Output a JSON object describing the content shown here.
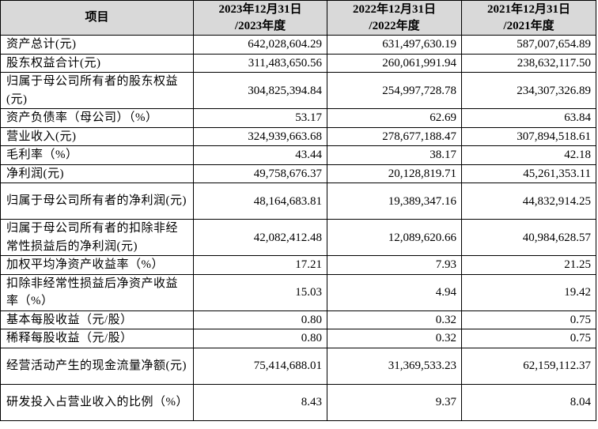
{
  "header": {
    "item_label": "项目",
    "columns": [
      {
        "date": "2023年12月31日",
        "period": "/2023年度"
      },
      {
        "date": "2022年12月31日",
        "period": "/2022年度"
      },
      {
        "date": "2021年12月31日",
        "period": "/2021年度"
      }
    ]
  },
  "rows": [
    {
      "label": "资产总计(元)",
      "values": [
        "642,028,604.29",
        "631,497,630.19",
        "587,007,654.89"
      ]
    },
    {
      "label": "股东权益合计(元)",
      "values": [
        "311,483,650.56",
        "260,061,991.94",
        "238,632,117.50"
      ]
    },
    {
      "label": "归属于母公司所有者的股东权益(元)",
      "values": [
        "304,825,394.84",
        "254,997,728.78",
        "234,307,326.89"
      ]
    },
    {
      "label": "资产负债率（母公司）（%）",
      "values": [
        "53.17",
        "62.69",
        "63.84"
      ]
    },
    {
      "label": "营业收入(元)",
      "values": [
        "324,939,663.68",
        "278,677,188.47",
        "307,894,518.61"
      ]
    },
    {
      "label": "毛利率（%）",
      "values": [
        "43.44",
        "38.17",
        "42.18"
      ]
    },
    {
      "label": "净利润(元)",
      "values": [
        "49,758,676.37",
        "20,128,819.71",
        "45,261,353.11"
      ]
    },
    {
      "label": "归属于母公司所有者的净利润(元)",
      "values": [
        "48,164,683.81",
        "19,389,347.16",
        "44,832,914.25"
      ]
    },
    {
      "label": "归属于母公司所有者的扣除非经常性损益后的净利润(元)",
      "values": [
        "42,082,412.48",
        "12,089,620.66",
        "40,984,628.57"
      ]
    },
    {
      "label": "加权平均净资产收益率（%）",
      "values": [
        "17.21",
        "7.93",
        "21.25"
      ]
    },
    {
      "label": "扣除非经常性损益后净资产收益率（%）",
      "values": [
        "15.03",
        "4.94",
        "19.42"
      ]
    },
    {
      "label": "基本每股收益（元/股）",
      "values": [
        "0.80",
        "0.32",
        "0.75"
      ]
    },
    {
      "label": "稀释每股收益（元/股）",
      "values": [
        "0.80",
        "0.32",
        "0.75"
      ]
    },
    {
      "label": "经营活动产生的现金流量净额(元)",
      "values": [
        "75,414,688.01",
        "31,369,533.23",
        "62,159,112.37"
      ]
    },
    {
      "label": "研发投入占营业收入的比例（%）",
      "values": [
        "8.43",
        "9.37",
        "8.04"
      ]
    }
  ]
}
